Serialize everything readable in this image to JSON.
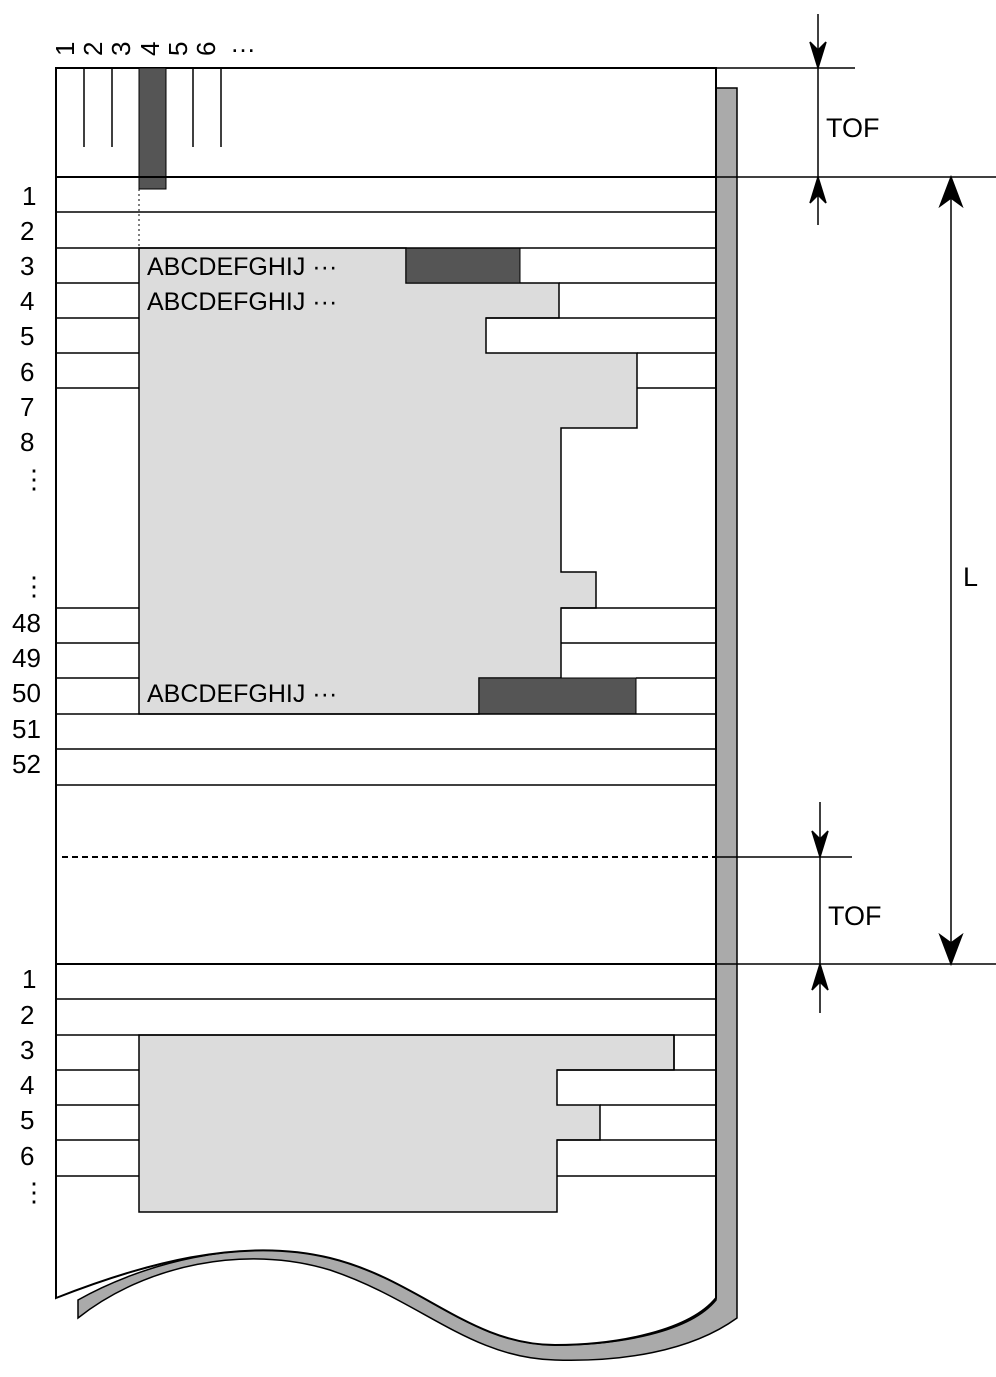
{
  "column_numbers": [
    "1",
    "2",
    "3",
    "4",
    "5",
    "6",
    "…"
  ],
  "page1_line_labels": [
    "1",
    "2",
    "3",
    "4",
    "5",
    "6",
    "7",
    "8",
    "⋮",
    "⋮",
    "48",
    "49",
    "50",
    "51",
    "52"
  ],
  "page2_line_labels": [
    "1",
    "2",
    "3",
    "4",
    "5",
    "6",
    "⋮"
  ],
  "print_text": {
    "line3": "ABCDEFGHIJ ···",
    "line4": "ABCDEFGHIJ ···",
    "line50": "ABCDEFGHIJ ···"
  },
  "labels": {
    "tof_top": "TOF",
    "tof_bottom": "TOF",
    "page_length": "L"
  },
  "colors": {
    "print_area": "#dcdcdc",
    "print_head": "#555555",
    "paper_edge": "#aaaaaa",
    "line": "#000000"
  }
}
